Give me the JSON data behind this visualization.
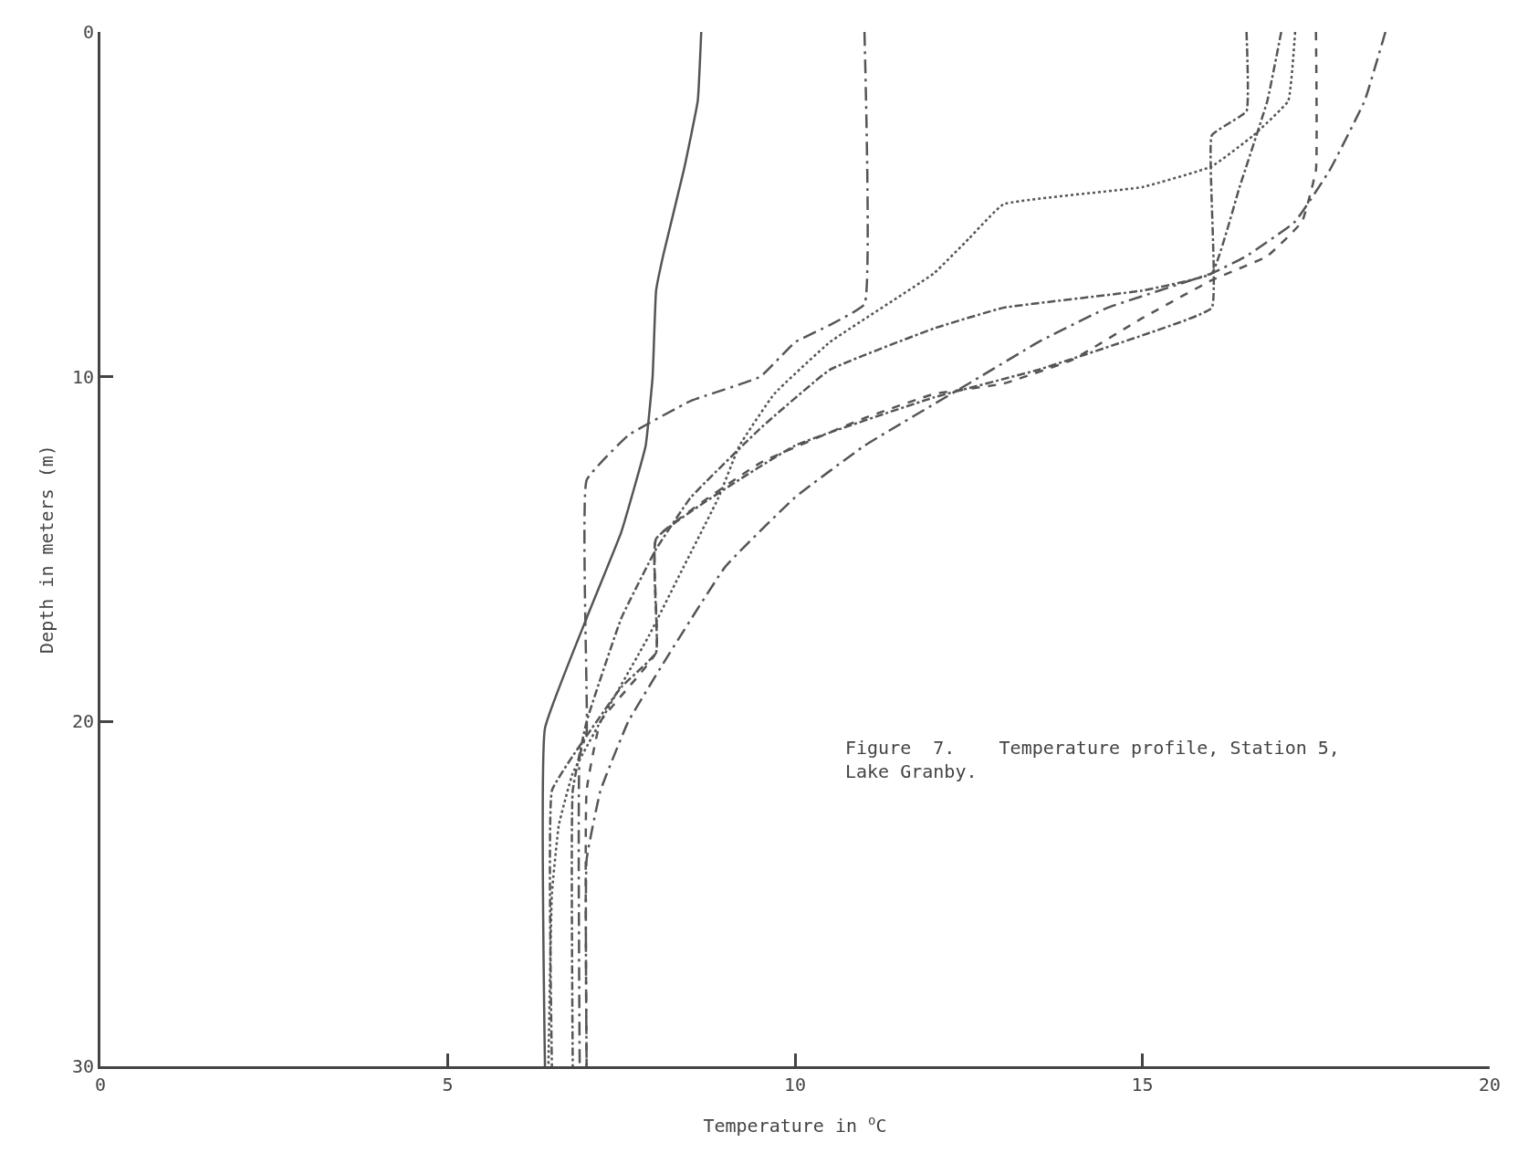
{
  "chart_data": {
    "type": "line",
    "xlabel": "Temperature in $^{o}$C",
    "ylabel": "Depth in meters (m)",
    "annotations": [
      "Figure  7.    Temperature profile, Station 5,\nLake Granby."
    ],
    "xlim": [
      0,
      20
    ],
    "xticks": [
      0,
      5,
      10,
      15,
      20
    ],
    "ylim": [
      30,
      0
    ],
    "yticks": [
      0,
      10,
      20,
      30
    ],
    "marker": "none",
    "series": [
      {
        "color": "#555555",
        "line_style": "solid",
        "x": [
          8.65,
          8.6,
          8.4,
          8.1,
          8.0,
          7.95,
          7.85,
          7.5,
          7.0,
          6.4,
          6.4
        ],
        "values": [
          0,
          2,
          4,
          6.5,
          7.5,
          10,
          12,
          14.5,
          17,
          20.2,
          30
        ]
      },
      {
        "color": "#555555",
        "line_style": "longdashdot",
        "x": [
          11,
          11,
          10.5,
          10,
          9.5,
          8.5,
          7.6,
          7.0,
          7.0,
          6.9,
          6.9
        ],
        "values": [
          0,
          7.9,
          8.5,
          9,
          10,
          10.7,
          11.7,
          13,
          20.3,
          21,
          30
        ]
      },
      {
        "color": "#555555",
        "line_style": "dotted",
        "x": [
          17.2,
          17.1,
          16.6,
          16,
          15,
          13,
          12.5,
          12,
          10.5,
          9.7,
          9.2,
          8.9,
          8.4,
          7.9,
          7.2,
          6.8,
          6.6,
          6.5,
          6.45
        ],
        "values": [
          0,
          2,
          3,
          3.9,
          4.5,
          5,
          6,
          7,
          9,
          10.5,
          12,
          13.5,
          15.5,
          17.5,
          20,
          21.5,
          23,
          25,
          30
        ]
      },
      {
        "color": "#555555",
        "line_style": "dashdot",
        "x": [
          16.5,
          16.5,
          16,
          16,
          15,
          13.5,
          12,
          10,
          8,
          8,
          7.5,
          6.8,
          6.5,
          6.5
        ],
        "values": [
          0,
          2.3,
          3,
          8,
          8.8,
          9.8,
          10.6,
          12,
          14.7,
          18,
          19,
          21,
          22,
          30
        ]
      },
      {
        "color": "#555555",
        "line_style": "dashed",
        "x": [
          17.5,
          17.5,
          17.3,
          16.8,
          16,
          15,
          14,
          13,
          12,
          11,
          9.5,
          8,
          8,
          7.2,
          7,
          7
        ],
        "values": [
          0,
          4,
          5.5,
          6.5,
          7.2,
          8.3,
          9.5,
          10.2,
          10.5,
          11.2,
          12.5,
          14.7,
          18,
          20,
          22,
          30
        ]
      },
      {
        "color": "#555555",
        "line_style": "dashdot",
        "x": [
          17,
          16.8,
          16.4,
          16,
          15,
          13,
          12,
          10.5,
          9.5,
          8.5,
          8,
          7.5,
          7,
          6.8,
          6.8
        ],
        "values": [
          0,
          2,
          4.5,
          7,
          7.5,
          8,
          8.6,
          9.8,
          11.5,
          13.5,
          15,
          17,
          20,
          22,
          30
        ]
      },
      {
        "color": "#555555",
        "line_style": "longdashdot",
        "x": [
          18.5,
          18.2,
          17.7,
          17.2,
          16.5,
          16,
          14.5,
          13.5,
          12.5,
          11,
          10,
          9,
          8.2,
          7.6,
          7.2,
          7,
          7
        ],
        "values": [
          0,
          2,
          4,
          5.5,
          6.5,
          7,
          8,
          9,
          10.2,
          12,
          13.5,
          15.5,
          18,
          20,
          22,
          24,
          30
        ]
      }
    ]
  }
}
